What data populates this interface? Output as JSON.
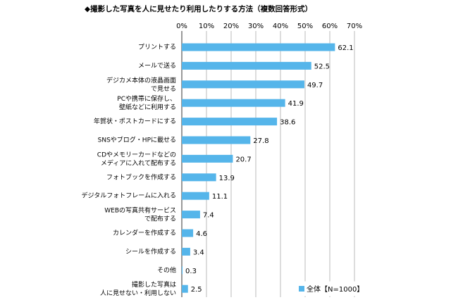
{
  "chart_data": {
    "type": "bar",
    "orientation": "horizontal",
    "title": "◆撮影した写真を人に見せたり利用したりする方法（複数回答形式）",
    "categories": [
      "プリントする",
      "メールで送る",
      "デジカメ本体の液晶画面\nで見せる",
      "PCや携帯に保存し、\n壁紙などに利用する",
      "年賀状・ポストカードにする",
      "SNSやブログ・HPに載せる",
      "CDやメモリーカードなどの\nメディアに入れて配布する",
      "フォトブックを作成する",
      "デジタルフォトフレームに入れる",
      "WEBの写真共有サービス\nで配布する",
      "カレンダーを作成する",
      "シールを作成する",
      "その他",
      "撮影した写真は\n人に見せない・利用しない"
    ],
    "series": [
      {
        "name": "全体【N=1000】",
        "color": "#55b5ea",
        "values": [
          62.1,
          52.5,
          49.7,
          41.9,
          38.6,
          27.8,
          20.7,
          13.9,
          11.1,
          7.4,
          4.6,
          3.4,
          0.3,
          2.5
        ]
      }
    ],
    "xlim": [
      0,
      70
    ],
    "xticks": [
      {
        "value": 0,
        "label": "0%"
      },
      {
        "value": 10,
        "label": "10%"
      },
      {
        "value": 20,
        "label": "20%"
      },
      {
        "value": 30,
        "label": "30%"
      },
      {
        "value": 40,
        "label": "40%"
      },
      {
        "value": 50,
        "label": "50%"
      },
      {
        "value": 60,
        "label": "60%"
      },
      {
        "value": 70,
        "label": "70%"
      }
    ],
    "grid": true,
    "legend": "lower right"
  }
}
